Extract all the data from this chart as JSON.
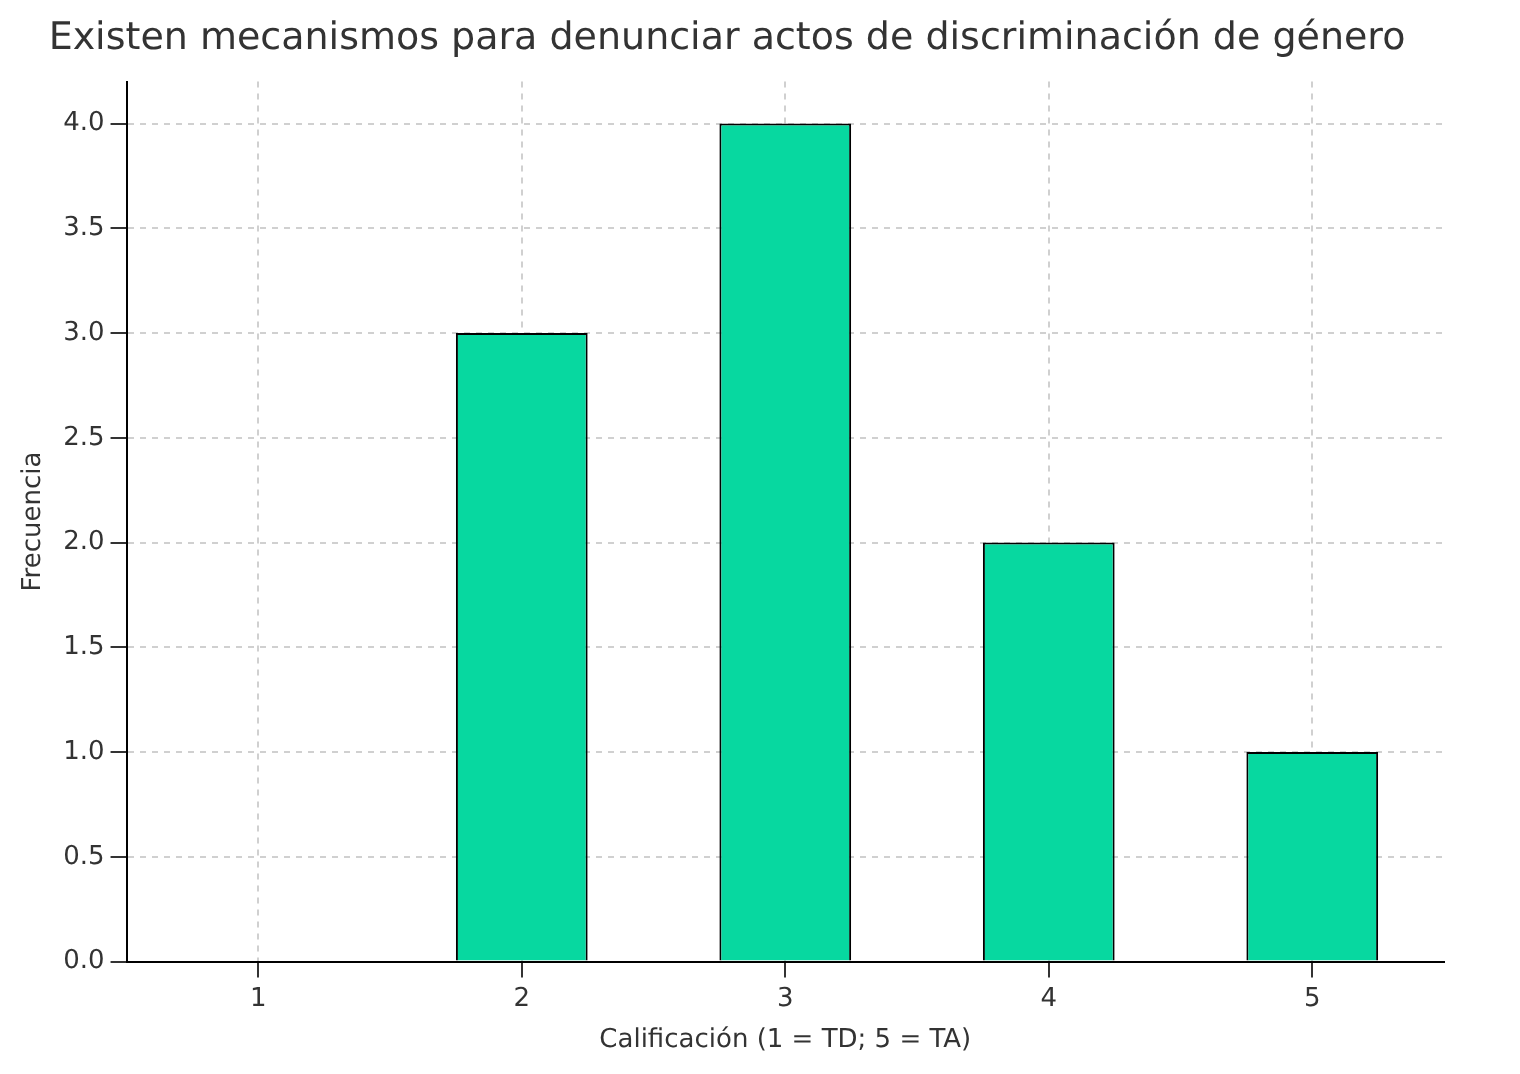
{
  "chart_data": {
    "type": "bar",
    "title": "Existen mecanismos para denunciar actos de discriminación de género",
    "xlabel": "Calificación (1 = TD; 5 = TA)",
    "ylabel": "Frecuencia",
    "categories": [
      "1",
      "2",
      "3",
      "4",
      "5"
    ],
    "values": [
      0,
      3,
      4,
      2,
      1
    ],
    "color": "#07d8a0",
    "ylim": [
      0,
      4.2
    ],
    "yticks": [
      {
        "value": 0,
        "label": "0.0"
      },
      {
        "value": 0.5,
        "label": "0.5"
      },
      {
        "value": 1,
        "label": "1.0"
      },
      {
        "value": 1.5,
        "label": "1.5"
      },
      {
        "value": 2,
        "label": "2.0"
      },
      {
        "value": 2.5,
        "label": "2.5"
      },
      {
        "value": 3,
        "label": "3.0"
      },
      {
        "value": 3.5,
        "label": "3.5"
      },
      {
        "value": 4,
        "label": "4.0"
      }
    ],
    "grid": true
  }
}
